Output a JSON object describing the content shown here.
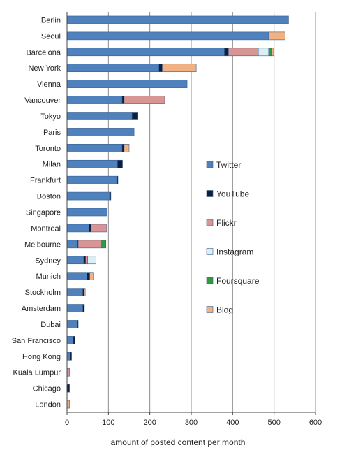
{
  "chart_data": {
    "type": "bar",
    "orientation": "horizontal",
    "stacked": true,
    "title": "",
    "xlabel": "amount of posted content per month",
    "ylabel": "",
    "xlim": [
      0,
      600
    ],
    "xticks": [
      "0",
      "100",
      "200",
      "300",
      "400",
      "500",
      "600"
    ],
    "grid": "vertical",
    "legend_position": "right",
    "categories": [
      "Berlin",
      "Seoul",
      "Barcelona",
      "New York",
      "Vienna",
      "Vancouver",
      "Tokyo",
      "Paris",
      "Toronto",
      "Milan",
      "Frankfurt",
      "Boston",
      "Singapore",
      "Montreal",
      "Melbourne",
      "Sydney",
      "Munich",
      "Stockholm",
      "Amsterdam",
      "Dubai",
      "San Francisco",
      "Hong Kong",
      "Kuala Lumpur",
      "Chicago",
      "London"
    ],
    "series": [
      {
        "name": "Twitter",
        "color": "#4f81bd",
        "values": [
          535,
          487,
          380,
          222,
          290,
          133,
          157,
          162,
          133,
          122,
          120,
          103,
          97,
          53,
          25,
          40,
          48,
          38,
          38,
          25,
          15,
          8,
          0,
          0,
          0
        ]
      },
      {
        "name": "YouTube",
        "color": "#0d1f3c",
        "values": [
          0,
          0,
          10,
          8,
          0,
          5,
          13,
          0,
          5,
          12,
          3,
          3,
          0,
          5,
          2,
          5,
          7,
          3,
          4,
          2,
          4,
          3,
          0,
          6,
          0
        ]
      },
      {
        "name": "Flickr",
        "color": "#d99594",
        "values": [
          0,
          0,
          72,
          0,
          0,
          98,
          0,
          0,
          0,
          0,
          0,
          0,
          0,
          38,
          55,
          5,
          0,
          0,
          0,
          0,
          0,
          0,
          6,
          0,
          0
        ]
      },
      {
        "name": "Instagram",
        "color": "#dbeef4",
        "values": [
          0,
          0,
          25,
          0,
          0,
          0,
          0,
          0,
          0,
          0,
          0,
          0,
          0,
          0,
          0,
          20,
          0,
          0,
          0,
          0,
          0,
          0,
          0,
          0,
          0
        ]
      },
      {
        "name": "Foursquare",
        "color": "#2e9b3e",
        "values": [
          0,
          0,
          7,
          0,
          0,
          0,
          0,
          0,
          0,
          0,
          0,
          0,
          0,
          0,
          12,
          0,
          0,
          0,
          0,
          0,
          0,
          0,
          0,
          0,
          0
        ]
      },
      {
        "name": "Blog",
        "color": "#f2b183",
        "values": [
          0,
          40,
          5,
          82,
          0,
          0,
          0,
          0,
          12,
          0,
          0,
          0,
          0,
          0,
          0,
          0,
          8,
          3,
          0,
          0,
          0,
          0,
          0,
          0,
          6
        ]
      }
    ]
  }
}
